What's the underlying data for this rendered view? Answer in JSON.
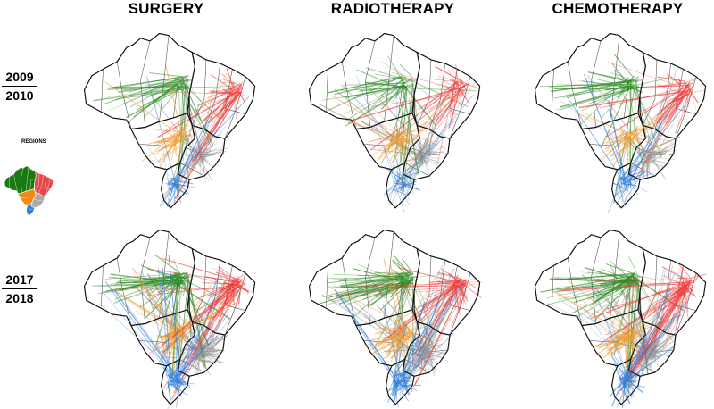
{
  "columns": [
    "SURGERY",
    "RADIOTHERAPY",
    "CHEMOTHERAPY"
  ],
  "rows": [
    {
      "year_top": "2009",
      "year_bottom": "2010"
    },
    {
      "year_top": "2017",
      "year_bottom": "2018"
    }
  ],
  "legend": {
    "title": "REGIONS",
    "regions": [
      {
        "id": "north",
        "color": "#1a7a12"
      },
      {
        "id": "northeast",
        "color": "#e8474a"
      },
      {
        "id": "central_west",
        "color": "#f28a16"
      },
      {
        "id": "southeast",
        "color": "#a9a9a9"
      },
      {
        "id": "south",
        "color": "#2f7fe0"
      }
    ]
  },
  "flow_colors": {
    "north": "#2f8a22",
    "northeast": "#ef3b3b",
    "central_west": "#f29a2e",
    "southeast": "#9a9a9a",
    "south": "#2f7fe0"
  }
}
